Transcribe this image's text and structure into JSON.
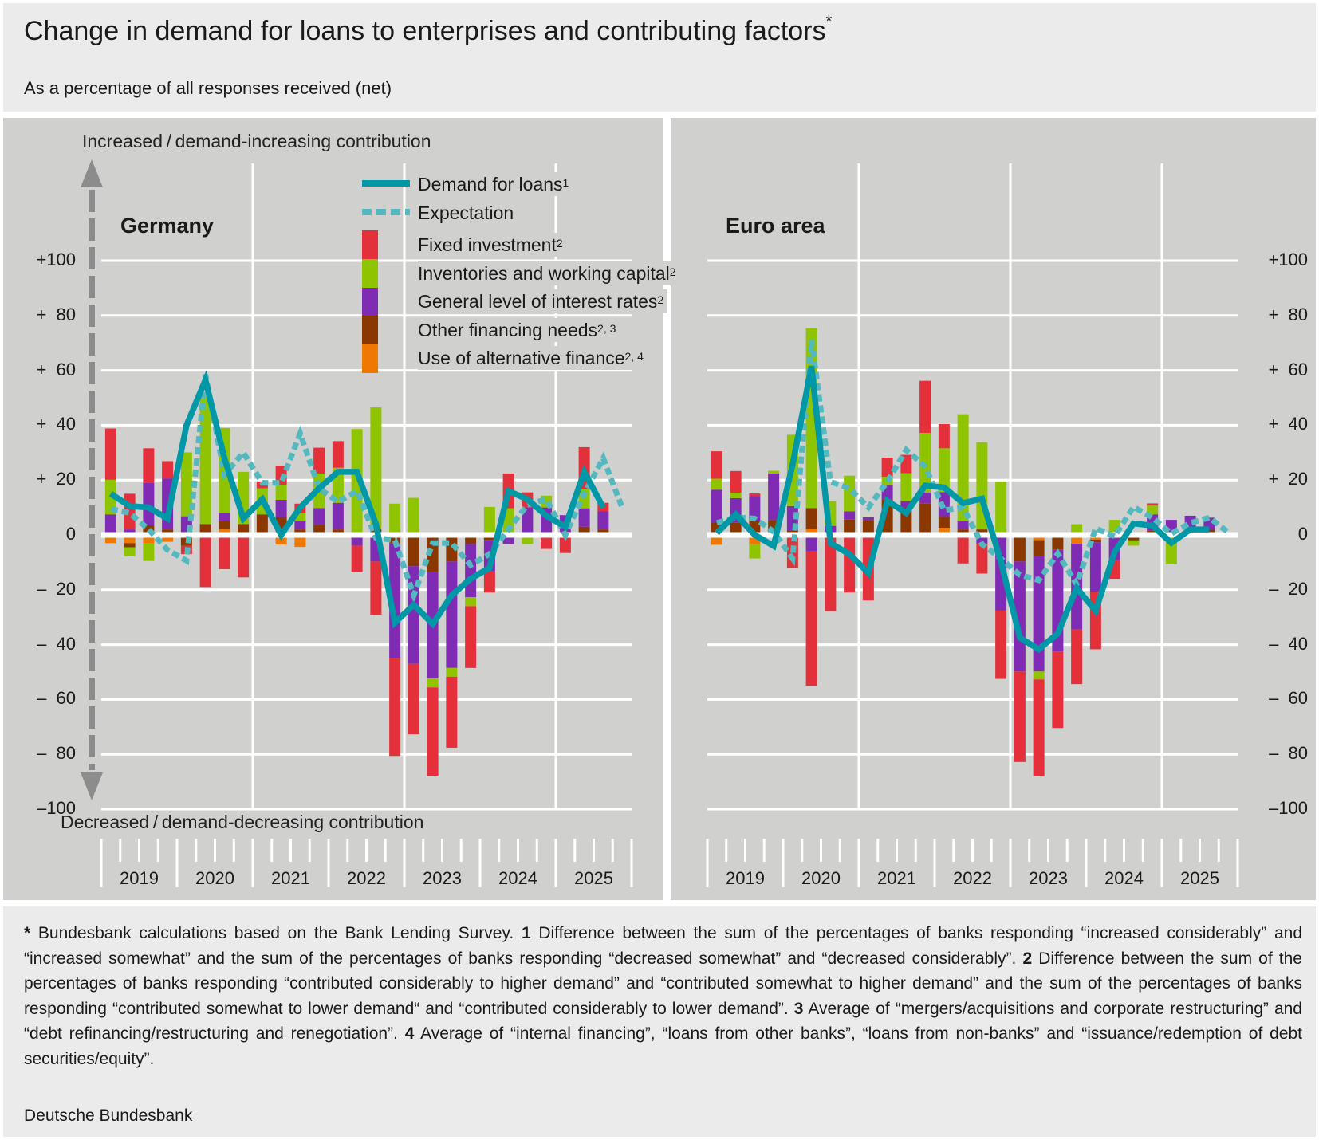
{
  "title": {
    "text": "Change in demand for loans to enterprises and contributing factors",
    "marker": "*"
  },
  "subtitle": "As a percentage of all responses received (net)",
  "axis": {
    "top_label": "Increased / demand-increasing contribution",
    "bottom_label": "Decreased / demand-decreasing contribution",
    "tick_values": [
      100,
      80,
      60,
      40,
      20,
      0,
      -20,
      -40,
      -60,
      -80,
      -100
    ],
    "tick_labels": [
      "+100",
      "+  80",
      "+  60",
      "+  40",
      "+  20",
      "0",
      "–  20",
      "–  40",
      "–  60",
      "–  80",
      "–100"
    ],
    "ylim": [
      -100,
      100
    ],
    "x_tick_labels": [
      "2019",
      "2020",
      "2021",
      "2022",
      "2023",
      "2024",
      "2025"
    ]
  },
  "legend": [
    {
      "label": "Demand for loans",
      "sup": "1",
      "type": "line",
      "color": "#0098a6"
    },
    {
      "label": "Expectation",
      "sup": "",
      "type": "dotted-line",
      "color": "#54b8bf"
    },
    {
      "label": "Fixed investment",
      "sup": "2",
      "type": "bar",
      "color": "#e3303a"
    },
    {
      "label": "Inventories and working capital",
      "sup": "2",
      "type": "bar",
      "color": "#8fc400"
    },
    {
      "label": "General level of interest rates",
      "sup": "2",
      "type": "bar",
      "color": "#7f2bb3"
    },
    {
      "label": "Other financing needs",
      "sup": "2, 3",
      "type": "bar",
      "color": "#8a3800"
    },
    {
      "label": "Use of alternative finance",
      "sup": "2, 4",
      "type": "bar",
      "color": "#f07800"
    }
  ],
  "chart_data": [
    {
      "type": "bar",
      "stacked": true,
      "title": "Germany",
      "x_unit": "quarter",
      "x_start": "2019 Q1",
      "grid": true,
      "legend_placement": "top-center",
      "series": [
        {
          "name": "Fixed investment",
          "type": "bar",
          "values": [
            18.7,
            13,
            12.6,
            6.3,
            -3,
            -19,
            -12.5,
            -15.5,
            2.5,
            7,
            3.4,
            9.4,
            9.7,
            -9.7,
            -19.4,
            -35.6,
            -25.7,
            -32.2,
            -25.9,
            -22.5,
            -7.7,
            12.7,
            5.5,
            -5.1,
            -6.6,
            15.2,
            3
          ]
        },
        {
          "name": "Inventories and working capital",
          "type": "bar",
          "values": [
            12.6,
            -3.3,
            -6.5,
            0,
            23.3,
            48,
            31,
            19,
            9.5,
            5.5,
            3,
            12.6,
            12.8,
            38.6,
            44.5,
            10.4,
            13.5,
            -3.3,
            -3.2,
            -3.3,
            10.2,
            9.7,
            -3.3,
            4.3,
            0,
            7.1,
            0
          ]
        },
        {
          "name": "General level of interest rates",
          "type": "bar",
          "values": [
            6.5,
            2,
            15.5,
            18.6,
            6.8,
            0,
            3,
            0,
            0,
            6.3,
            3,
            6.1,
            9.7,
            -3.9,
            -9.7,
            -42,
            -35.6,
            -38.7,
            -38.8,
            -19.4,
            -11.5,
            -3.3,
            9,
            9,
            6.2,
            6.7,
            6.7
          ]
        },
        {
          "name": "Other financing needs",
          "type": "bar",
          "values": [
            1,
            -1.5,
            3.5,
            2,
            -4,
            3,
            3,
            4,
            7.5,
            6.5,
            2,
            3.7,
            2,
            0,
            2,
            -3,
            -11.4,
            -13.6,
            -9.7,
            -3.3,
            -1.8,
            0,
            1,
            1,
            1,
            3,
            2
          ]
        },
        {
          "name": "Use of alternative finance",
          "type": "bar",
          "values": [
            -3,
            -3,
            -3,
            -2.5,
            0,
            1,
            2,
            0,
            0,
            -3.5,
            -4.4,
            0,
            0,
            0,
            0,
            1,
            0,
            0,
            1,
            0,
            0,
            0,
            0,
            0,
            0,
            0,
            0
          ]
        },
        {
          "name": "Demand for loans",
          "type": "line",
          "values": [
            15,
            10.5,
            10,
            6,
            40,
            56.5,
            28,
            6,
            13,
            0,
            10,
            17,
            23,
            23,
            4,
            -32,
            -25.5,
            -32.5,
            -22,
            -16,
            -12,
            16,
            13,
            7,
            3,
            23,
            10
          ]
        },
        {
          "name": "Expectation",
          "type": "line",
          "values": [
            9.5,
            8,
            2,
            -5.5,
            -9.4,
            58.5,
            22,
            30,
            19,
            19,
            37,
            17,
            12,
            16,
            -1,
            -2,
            -22,
            -3,
            -3,
            -11,
            -7,
            2,
            11,
            13,
            0,
            15,
            28,
            10
          ]
        }
      ]
    },
    {
      "type": "bar",
      "stacked": true,
      "title": "Euro area",
      "x_unit": "quarter",
      "x_start": "2019 Q1",
      "grid": true,
      "series": [
        {
          "name": "Fixed investment",
          "type": "bar",
          "values": [
            10,
            7.9,
            1,
            0,
            -12,
            -49,
            -27.8,
            -21,
            -23.4,
            7,
            6.7,
            19,
            8.8,
            -10.4,
            -10.9,
            -24.9,
            -33,
            -35.3,
            -27.9,
            -20.1,
            -21,
            -6.8,
            0,
            0.8,
            0,
            0,
            0
          ]
        },
        {
          "name": "Inventories and working capital",
          "type": "bar",
          "values": [
            4,
            2,
            -5.2,
            1,
            26,
            65.6,
            9,
            13,
            0,
            3,
            10.2,
            21.8,
            16,
            39,
            31.8,
            19.4,
            0,
            -2.9,
            0,
            2.9,
            0,
            4.5,
            -1.9,
            3.2,
            -10.7,
            0,
            0
          ]
        },
        {
          "name": "General level of interest rates",
          "type": "bar",
          "values": [
            12,
            9,
            9.1,
            17,
            9,
            -6,
            3.3,
            3,
            1,
            5.2,
            2.3,
            4,
            9,
            3,
            -3.2,
            -27.6,
            -40.1,
            -42.2,
            -37.2,
            -31.1,
            -18,
            -9.2,
            0,
            6,
            5.5,
            7,
            4.4
          ]
        },
        {
          "name": "Other financing needs",
          "type": "bar",
          "values": [
            4.5,
            4.4,
            5,
            5.4,
            1.5,
            7.5,
            0,
            5.6,
            5.4,
            13,
            10,
            11.4,
            4,
            2,
            2,
            0,
            -9.7,
            -5.7,
            -5.3,
            1,
            -1,
            1,
            -2,
            1.5,
            0,
            -0.5,
            1.9
          ]
        },
        {
          "name": "Use of alternative finance",
          "type": "bar",
          "values": [
            -3.6,
            -1,
            -3.4,
            0,
            0,
            2.3,
            0,
            0,
            -0.5,
            0,
            -1,
            0,
            2.6,
            0,
            0,
            0,
            0,
            -1.9,
            0,
            -3.2,
            -1.7,
            0,
            0,
            0,
            0,
            0,
            0
          ]
        },
        {
          "name": "Demand for loans",
          "type": "line",
          "values": [
            0.7,
            7.5,
            0,
            -4,
            25.6,
            61.5,
            -3,
            -7,
            -13.8,
            12.4,
            8,
            18,
            17.3,
            11.6,
            13.2,
            -9.7,
            -37.5,
            -41.7,
            -36,
            -19.4,
            -27.7,
            -6.3,
            4.2,
            3.4,
            -2.9,
            2,
            2
          ]
        },
        {
          "name": "Expectation",
          "type": "line",
          "values": [
            4.4,
            6.4,
            6,
            1.2,
            -8.6,
            71,
            19.4,
            17,
            10,
            19.4,
            31,
            25,
            9,
            10,
            -3.4,
            -8.6,
            -14.6,
            -16.5,
            -6.8,
            -18,
            2.4,
            -0.5,
            10.2,
            6.3,
            0.5,
            4.4,
            6.3,
            1
          ]
        }
      ]
    }
  ],
  "footnotes": [
    {
      "marker": "*",
      "text": "Bundesbank calculations based on the Bank Lending Survey."
    },
    {
      "marker": "1",
      "text": "Difference between the sum of the percentages of banks responding “increased considerably” and “increased somewhat” and the sum of the percentages of banks responding “decreased somewhat” and “decreased considerably”."
    },
    {
      "marker": "2",
      "text": "Difference between the sum of the percentages of banks responding “contributed considerably to higher demand” and “contributed somewhat to higher demand” and the sum of the percentages of banks responding “contributed some­what to lower demand“ and “contributed considerably to lower demand”."
    },
    {
      "marker": "3",
      "text": "Average of “mergers/acquisitions and corporate restruc­turing” and “debt refinancing/restructuring and renegotiation”."
    },
    {
      "marker": "4",
      "text": "Average of “internal financing”, “loans from other banks”, “loans from non-banks” and “issuance/redemption of debt securities/equity”."
    }
  ],
  "source": "Deutsche Bundesbank",
  "colors": {
    "panel": "#d0d0cf",
    "band": "#ebebeb",
    "grid": "#ffffff",
    "arrow": "#8c8c8c"
  }
}
